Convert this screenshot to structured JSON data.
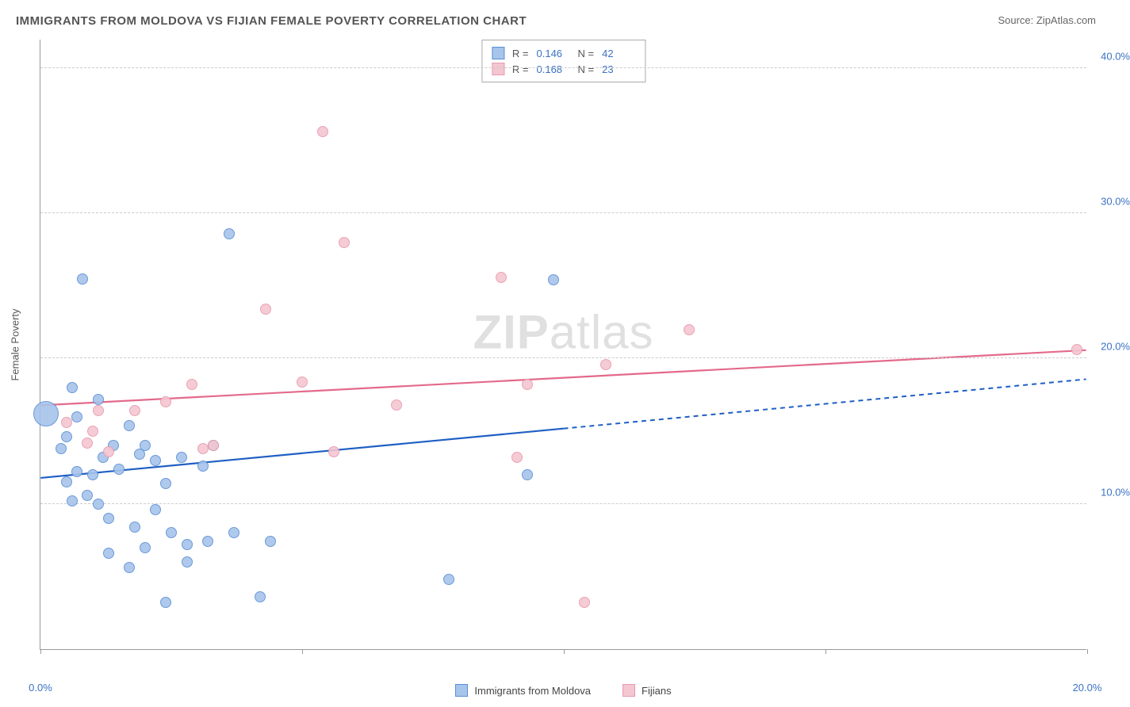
{
  "title": "IMMIGRANTS FROM MOLDOVA VS FIJIAN FEMALE POVERTY CORRELATION CHART",
  "source_label": "Source: ZipAtlas.com",
  "watermark": {
    "bold": "ZIP",
    "rest": "atlas"
  },
  "y_axis_title": "Female Poverty",
  "chart": {
    "type": "scatter",
    "xlim": [
      0,
      20
    ],
    "ylim": [
      0,
      42
    ],
    "x_ticks": [
      0,
      5,
      10,
      15,
      20
    ],
    "x_tick_labels": [
      "0.0%",
      "",
      "",
      "",
      "20.0%"
    ],
    "y_ticks": [
      10,
      20,
      30,
      40
    ],
    "y_tick_labels": [
      "10.0%",
      "20.0%",
      "30.0%",
      "40.0%"
    ],
    "grid_color": "#cccccc",
    "background_color": "#ffffff",
    "axis_color": "#999999",
    "tick_label_color": "#3a72c4",
    "marker_border_width": 1.2,
    "marker_fill_opacity": 0.35
  },
  "series": [
    {
      "name": "Immigrants from Moldova",
      "color_border": "#5a8fd6",
      "color_fill": "#a7c4ea",
      "trend_color": "#1f5fc4",
      "trend": {
        "x0": 0,
        "y0": 11.8,
        "x1_solid": 10,
        "y1_solid": 15.2,
        "x1_dash": 20,
        "y1_dash": 18.6
      },
      "R": "0.146",
      "N": "42",
      "default_size": 14,
      "points": [
        {
          "x": 0.1,
          "y": 16.2,
          "size": 32
        },
        {
          "x": 0.6,
          "y": 18.0
        },
        {
          "x": 0.7,
          "y": 16.0
        },
        {
          "x": 0.8,
          "y": 25.5
        },
        {
          "x": 0.4,
          "y": 13.8
        },
        {
          "x": 0.5,
          "y": 11.5
        },
        {
          "x": 0.6,
          "y": 10.2
        },
        {
          "x": 0.7,
          "y": 12.2
        },
        {
          "x": 0.5,
          "y": 14.6
        },
        {
          "x": 0.9,
          "y": 10.6
        },
        {
          "x": 1.0,
          "y": 12.0
        },
        {
          "x": 1.1,
          "y": 17.2
        },
        {
          "x": 1.2,
          "y": 13.2
        },
        {
          "x": 1.3,
          "y": 6.6
        },
        {
          "x": 1.3,
          "y": 9.0
        },
        {
          "x": 1.4,
          "y": 14.0
        },
        {
          "x": 1.5,
          "y": 12.4
        },
        {
          "x": 1.7,
          "y": 15.4
        },
        {
          "x": 1.7,
          "y": 5.6
        },
        {
          "x": 1.8,
          "y": 8.4
        },
        {
          "x": 1.9,
          "y": 13.4
        },
        {
          "x": 2.0,
          "y": 7.0
        },
        {
          "x": 2.0,
          "y": 14.0
        },
        {
          "x": 2.2,
          "y": 9.6
        },
        {
          "x": 2.2,
          "y": 13.0
        },
        {
          "x": 2.4,
          "y": 11.4
        },
        {
          "x": 2.4,
          "y": 3.2
        },
        {
          "x": 2.5,
          "y": 8.0
        },
        {
          "x": 2.7,
          "y": 13.2
        },
        {
          "x": 2.8,
          "y": 7.2
        },
        {
          "x": 2.8,
          "y": 6.0
        },
        {
          "x": 3.1,
          "y": 12.6
        },
        {
          "x": 3.2,
          "y": 7.4
        },
        {
          "x": 3.3,
          "y": 14.0
        },
        {
          "x": 3.6,
          "y": 28.6
        },
        {
          "x": 3.7,
          "y": 8.0
        },
        {
          "x": 4.2,
          "y": 3.6
        },
        {
          "x": 4.4,
          "y": 7.4
        },
        {
          "x": 7.8,
          "y": 4.8
        },
        {
          "x": 9.3,
          "y": 12.0
        },
        {
          "x": 9.8,
          "y": 25.4
        },
        {
          "x": 1.1,
          "y": 10.0
        }
      ]
    },
    {
      "name": "Fijians",
      "color_border": "#e89aad",
      "color_fill": "#f4c6d1",
      "trend_color": "#e36a8a",
      "trend": {
        "x0": 0,
        "y0": 16.8,
        "x1_solid": 20,
        "y1_solid": 20.6,
        "x1_dash": 20,
        "y1_dash": 20.6
      },
      "R": "0.168",
      "N": "23",
      "default_size": 14,
      "points": [
        {
          "x": 0.5,
          "y": 15.6
        },
        {
          "x": 0.9,
          "y": 14.2
        },
        {
          "x": 1.1,
          "y": 16.4
        },
        {
          "x": 1.3,
          "y": 13.6
        },
        {
          "x": 1.8,
          "y": 16.4
        },
        {
          "x": 2.4,
          "y": 17.0
        },
        {
          "x": 2.9,
          "y": 18.2
        },
        {
          "x": 3.1,
          "y": 13.8
        },
        {
          "x": 3.3,
          "y": 14.0
        },
        {
          "x": 4.3,
          "y": 23.4
        },
        {
          "x": 5.0,
          "y": 18.4
        },
        {
          "x": 5.4,
          "y": 35.6
        },
        {
          "x": 5.6,
          "y": 13.6
        },
        {
          "x": 5.8,
          "y": 28.0
        },
        {
          "x": 6.8,
          "y": 16.8
        },
        {
          "x": 8.8,
          "y": 25.6
        },
        {
          "x": 9.1,
          "y": 13.2
        },
        {
          "x": 9.3,
          "y": 18.2
        },
        {
          "x": 10.4,
          "y": 3.2
        },
        {
          "x": 10.8,
          "y": 19.6
        },
        {
          "x": 12.4,
          "y": 22.0
        },
        {
          "x": 19.8,
          "y": 20.6
        },
        {
          "x": 1.0,
          "y": 15.0
        }
      ]
    }
  ],
  "stats_legend_labels": {
    "R": "R =",
    "N": "N ="
  },
  "bottom_legend": [
    {
      "label": "Immigrants from Moldova",
      "fill": "#a7c4ea",
      "border": "#5a8fd6"
    },
    {
      "label": "Fijians",
      "fill": "#f4c6d1",
      "border": "#e89aad"
    }
  ]
}
